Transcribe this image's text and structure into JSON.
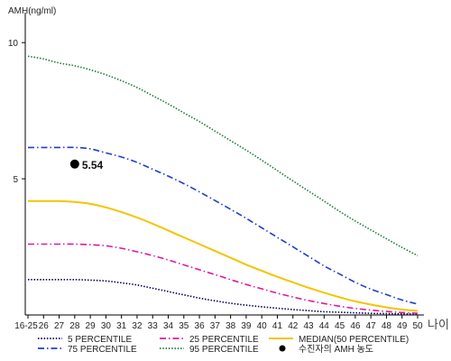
{
  "chart_data": {
    "type": "line",
    "ylabel": "AMH(ng/ml)",
    "xlabel": "나이",
    "x_categories": [
      "16-25",
      "26",
      "27",
      "28",
      "29",
      "30",
      "31",
      "32",
      "33",
      "34",
      "35",
      "36",
      "37",
      "38",
      "39",
      "40",
      "41",
      "42",
      "43",
      "44",
      "45",
      "46",
      "47",
      "48",
      "49",
      "50"
    ],
    "y_ticks": [
      5,
      10
    ],
    "ylim": [
      0,
      11.1
    ],
    "grid": false,
    "legend_position": "bottom",
    "series": [
      {
        "name": "5 PERCENTILE",
        "color": "#00005a",
        "style": "dotted",
        "values": [
          1.3,
          1.3,
          1.3,
          1.3,
          1.28,
          1.25,
          1.18,
          1.1,
          0.98,
          0.86,
          0.74,
          0.62,
          0.52,
          0.43,
          0.36,
          0.3,
          0.25,
          0.2,
          0.16,
          0.12,
          0.1,
          0.08,
          0.06,
          0.05,
          0.04,
          0.03
        ]
      },
      {
        "name": "75 PERCENTILE",
        "color": "#1f3ec9",
        "style": "dashdot",
        "values": [
          6.15,
          6.15,
          6.15,
          6.15,
          6.1,
          5.95,
          5.8,
          5.6,
          5.35,
          5.1,
          4.82,
          4.52,
          4.2,
          3.88,
          3.55,
          3.2,
          2.85,
          2.5,
          2.15,
          1.8,
          1.5,
          1.2,
          0.95,
          0.75,
          0.55,
          0.4
        ]
      },
      {
        "name": "25 PERCENTILE",
        "color": "#e0199a",
        "style": "dashdot",
        "values": [
          2.6,
          2.6,
          2.6,
          2.6,
          2.58,
          2.54,
          2.45,
          2.32,
          2.18,
          2.02,
          1.84,
          1.66,
          1.48,
          1.3,
          1.12,
          0.96,
          0.8,
          0.66,
          0.53,
          0.42,
          0.32,
          0.24,
          0.18,
          0.13,
          0.09,
          0.06
        ]
      },
      {
        "name": "95 PERCENTILE",
        "color": "#1e7a3c",
        "style": "dotted",
        "values": [
          9.5,
          9.4,
          9.25,
          9.15,
          9.0,
          8.82,
          8.6,
          8.35,
          8.05,
          7.75,
          7.42,
          7.1,
          6.75,
          6.4,
          6.05,
          5.68,
          5.3,
          4.92,
          4.55,
          4.18,
          3.8,
          3.45,
          3.12,
          2.8,
          2.48,
          2.18
        ]
      },
      {
        "name": "MEDIAN(50 PERCENTILE)",
        "color": "#f4c400",
        "style": "solid",
        "values": [
          4.18,
          4.18,
          4.18,
          4.15,
          4.08,
          3.95,
          3.78,
          3.58,
          3.35,
          3.1,
          2.85,
          2.6,
          2.35,
          2.1,
          1.85,
          1.62,
          1.4,
          1.2,
          1.0,
          0.82,
          0.65,
          0.5,
          0.38,
          0.28,
          0.2,
          0.15
        ]
      }
    ],
    "points": [
      {
        "name": "수진자의 AMH 농도",
        "x": "28",
        "y": 5.54,
        "label": "5.54",
        "color": "#000000"
      }
    ]
  }
}
